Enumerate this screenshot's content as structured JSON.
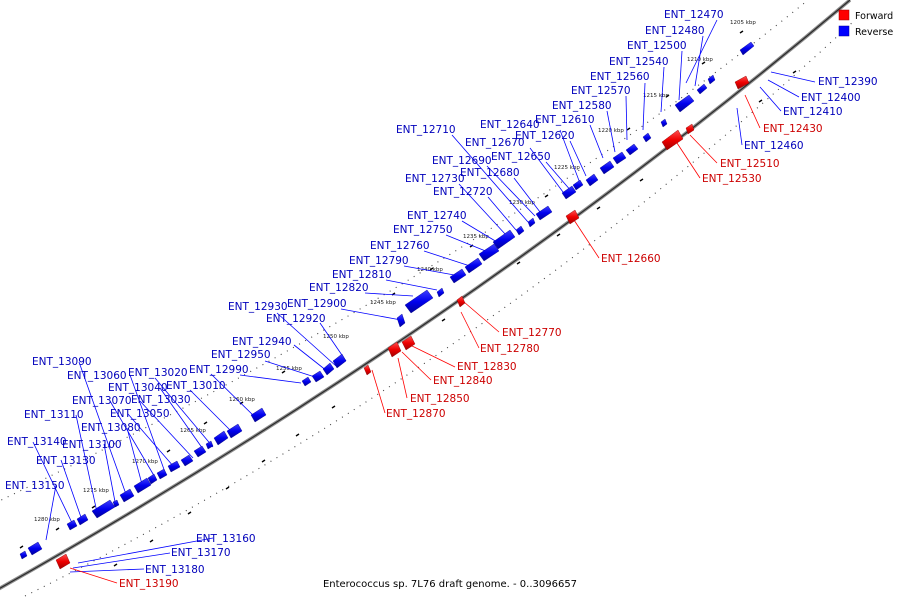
{
  "caption": "Enterococcus sp. 7L76 draft genome. - 0..3096657",
  "legend": {
    "forward": {
      "label": "Forward",
      "color": "#ff0000"
    },
    "reverse": {
      "label": "Reverse",
      "color": "#0000ff"
    }
  },
  "ticks": [
    "1205 kbp",
    "1210 kbp",
    "1215 kbp",
    "1220 kbp",
    "1225 kbp",
    "1230 kbp",
    "1235 kbp",
    "1240 kbp",
    "1245 kbp",
    "1250 kbp",
    "1255 kbp",
    "1260 kbp",
    "1265 kbp",
    "1270 kbp",
    "1275 kbp",
    "1280 kbp"
  ],
  "reverse_genes": [
    "ENT_12470",
    "ENT_12480",
    "ENT_12500",
    "ENT_12540",
    "ENT_12560",
    "ENT_12570",
    "ENT_12580",
    "ENT_12610",
    "ENT_12620",
    "ENT_12640",
    "ENT_12650",
    "ENT_12670",
    "ENT_12680",
    "ENT_12690",
    "ENT_12710",
    "ENT_12720",
    "ENT_12730",
    "ENT_12740",
    "ENT_12750",
    "ENT_12760",
    "ENT_12790",
    "ENT_12810",
    "ENT_12820",
    "ENT_12900",
    "ENT_12920",
    "ENT_12930",
    "ENT_12940",
    "ENT_12950",
    "ENT_12990",
    "ENT_13010",
    "ENT_13020",
    "ENT_13030",
    "ENT_13040",
    "ENT_13050",
    "ENT_13060",
    "ENT_13070",
    "ENT_13080",
    "ENT_13090",
    "ENT_13100",
    "ENT_13110",
    "ENT_13130",
    "ENT_13140",
    "ENT_13150",
    "ENT_12390",
    "ENT_12400",
    "ENT_12410",
    "ENT_12460",
    "ENT_13160",
    "ENT_13170",
    "ENT_13180"
  ],
  "forward_genes": [
    "ENT_12430",
    "ENT_12510",
    "ENT_12530",
    "ENT_12660",
    "ENT_12770",
    "ENT_12780",
    "ENT_12830",
    "ENT_12840",
    "ENT_12850",
    "ENT_12870",
    "ENT_13190"
  ]
}
